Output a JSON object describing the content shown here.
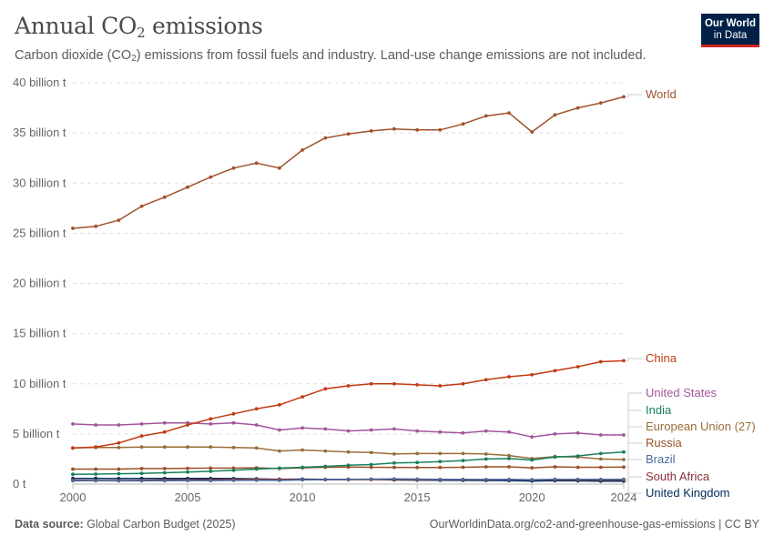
{
  "header": {
    "title_main": "Annual CO",
    "title_sub": "2",
    "title_end": " emissions",
    "subtitle_a": "Carbon dioxide (CO",
    "subtitle_sub": "2",
    "subtitle_b": ") emissions from fossil fuels and industry. Land-use change emissions are not included."
  },
  "logo": {
    "line1": "Our World",
    "line2": "in Data",
    "bg_color": "#002147",
    "accent_color": "#ce261e"
  },
  "footer": {
    "source_label": "Data source:",
    "source_value": " Global Carbon Budget (2025)",
    "right": "OurWorldinData.org/co2-and-greenhouse-gas-emissions | CC BY"
  },
  "chart_data": {
    "type": "line",
    "unit": "billion t",
    "x": [
      2000,
      2001,
      2002,
      2003,
      2004,
      2005,
      2006,
      2007,
      2008,
      2009,
      2010,
      2011,
      2012,
      2013,
      2014,
      2015,
      2016,
      2017,
      2018,
      2019,
      2020,
      2021,
      2022,
      2023,
      2024
    ],
    "xticks": [
      {
        "value": 2000,
        "label": "2000"
      },
      {
        "value": 2005,
        "label": "2005"
      },
      {
        "value": 2010,
        "label": "2010"
      },
      {
        "value": 2015,
        "label": "2015"
      },
      {
        "value": 2020,
        "label": "2020"
      },
      {
        "value": 2024,
        "label": "2024"
      }
    ],
    "yticks": [
      {
        "value": 0,
        "label": "0 t"
      },
      {
        "value": 5,
        "label": "5 billion t"
      },
      {
        "value": 10,
        "label": "10 billion t"
      },
      {
        "value": 15,
        "label": "15 billion t"
      },
      {
        "value": 20,
        "label": "20 billion t"
      },
      {
        "value": 25,
        "label": "25 billion t"
      },
      {
        "value": 30,
        "label": "30 billion t"
      },
      {
        "value": 35,
        "label": "35 billion t"
      },
      {
        "value": 40,
        "label": "40 billion t"
      }
    ],
    "xlim": [
      2000,
      2024
    ],
    "ylim": [
      0,
      40
    ],
    "grid": "horizontal dashed",
    "legend": "right, labels at line ends",
    "series": [
      {
        "name": "World",
        "color": "#a0522d",
        "values": [
          25.5,
          25.7,
          26.3,
          27.7,
          28.6,
          29.6,
          30.6,
          31.5,
          32.0,
          31.5,
          33.3,
          34.5,
          34.9,
          35.2,
          35.4,
          35.3,
          35.3,
          35.9,
          36.7,
          37.0,
          35.1,
          36.8,
          37.5,
          38.0,
          38.6
        ]
      },
      {
        "name": "China",
        "color": "#c13a12",
        "values": [
          3.6,
          3.7,
          4.1,
          4.8,
          5.2,
          5.9,
          6.5,
          7.0,
          7.5,
          7.9,
          8.7,
          9.5,
          9.8,
          10.0,
          10.0,
          9.9,
          9.8,
          10.0,
          10.4,
          10.7,
          10.9,
          11.3,
          11.7,
          12.2,
          12.3
        ]
      },
      {
        "name": "United States",
        "color": "#a2559c",
        "values": [
          6.0,
          5.9,
          5.9,
          6.0,
          6.1,
          6.1,
          6.0,
          6.1,
          5.9,
          5.4,
          5.6,
          5.5,
          5.3,
          5.4,
          5.5,
          5.3,
          5.2,
          5.1,
          5.3,
          5.2,
          4.7,
          5.0,
          5.1,
          4.9,
          4.9
        ]
      },
      {
        "name": "India",
        "color": "#18805b",
        "values": [
          0.98,
          1.0,
          1.03,
          1.07,
          1.13,
          1.2,
          1.28,
          1.38,
          1.5,
          1.6,
          1.68,
          1.77,
          1.88,
          1.95,
          2.1,
          2.15,
          2.25,
          2.35,
          2.5,
          2.55,
          2.4,
          2.7,
          2.8,
          3.05,
          3.2
        ]
      },
      {
        "name": "European Union (27)",
        "color": "#996d39",
        "values": [
          3.6,
          3.65,
          3.65,
          3.7,
          3.7,
          3.7,
          3.7,
          3.65,
          3.6,
          3.3,
          3.4,
          3.3,
          3.2,
          3.15,
          3.0,
          3.05,
          3.05,
          3.05,
          3.0,
          2.85,
          2.55,
          2.75,
          2.7,
          2.5,
          2.45
        ]
      },
      {
        "name": "Russia",
        "color": "#9a5129",
        "values": [
          1.5,
          1.5,
          1.5,
          1.55,
          1.55,
          1.58,
          1.6,
          1.6,
          1.62,
          1.55,
          1.62,
          1.68,
          1.7,
          1.68,
          1.67,
          1.66,
          1.66,
          1.68,
          1.72,
          1.72,
          1.62,
          1.72,
          1.68,
          1.68,
          1.7
        ]
      },
      {
        "name": "Brazil",
        "color": "#4c6a9c",
        "values": [
          0.33,
          0.34,
          0.33,
          0.33,
          0.34,
          0.35,
          0.35,
          0.37,
          0.39,
          0.37,
          0.42,
          0.44,
          0.47,
          0.5,
          0.52,
          0.5,
          0.47,
          0.47,
          0.46,
          0.46,
          0.44,
          0.48,
          0.47,
          0.47,
          0.48
        ]
      },
      {
        "name": "South Africa",
        "color": "#883039",
        "values": [
          0.38,
          0.37,
          0.36,
          0.39,
          0.42,
          0.42,
          0.44,
          0.46,
          0.47,
          0.47,
          0.45,
          0.44,
          0.44,
          0.45,
          0.46,
          0.43,
          0.44,
          0.44,
          0.44,
          0.46,
          0.42,
          0.44,
          0.42,
          0.41,
          0.42
        ]
      },
      {
        "name": "United Kingdom",
        "color": "#00295b",
        "values": [
          0.56,
          0.57,
          0.55,
          0.56,
          0.56,
          0.56,
          0.56,
          0.55,
          0.53,
          0.48,
          0.5,
          0.46,
          0.48,
          0.47,
          0.42,
          0.4,
          0.38,
          0.37,
          0.36,
          0.35,
          0.31,
          0.34,
          0.33,
          0.3,
          0.29
        ]
      }
    ]
  }
}
